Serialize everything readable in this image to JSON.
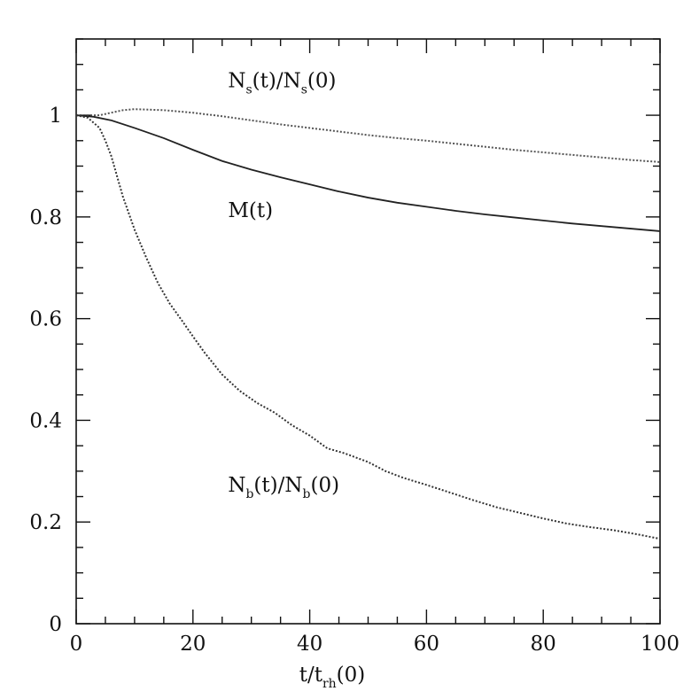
{
  "chart_data": {
    "type": "line",
    "title": "",
    "xlabel": {
      "base": "t/t",
      "sub": "rh",
      "suffix": "(0)"
    },
    "ylabel": "",
    "xlim": [
      0,
      100
    ],
    "ylim": [
      0,
      1.15
    ],
    "x_ticks": [
      "0",
      "20",
      "40",
      "60",
      "80",
      "100"
    ],
    "y_ticks": [
      "0",
      "0.2",
      "0.4",
      "0.6",
      "0.8",
      "1"
    ],
    "series": [
      {
        "name": "N_s(t)/N_s(0)",
        "label_parts": [
          {
            "t": "N",
            "sub": false
          },
          {
            "t": "s",
            "sub": true
          },
          {
            "t": "(t)/N",
            "sub": false
          },
          {
            "t": "s",
            "sub": true
          },
          {
            "t": "(0)",
            "sub": false
          }
        ],
        "label_at": [
          26,
          1.055
        ],
        "style": "dotted",
        "color": "#555555",
        "x": [
          0,
          2,
          4,
          6,
          8,
          10,
          15,
          20,
          25,
          30,
          35,
          40,
          45,
          50,
          55,
          60,
          65,
          70,
          75,
          80,
          85,
          90,
          95,
          100
        ],
        "y": [
          1.0,
          1.0,
          1.0,
          1.005,
          1.01,
          1.012,
          1.01,
          1.005,
          0.998,
          0.99,
          0.982,
          0.975,
          0.968,
          0.961,
          0.955,
          0.95,
          0.944,
          0.938,
          0.932,
          0.927,
          0.922,
          0.917,
          0.912,
          0.908
        ]
      },
      {
        "name": "M(t)",
        "label_parts": [
          {
            "t": "M(t)",
            "sub": false
          }
        ],
        "label_at": [
          26,
          0.8
        ],
        "style": "solid",
        "color": "#222222",
        "x": [
          0,
          3,
          6,
          10,
          15,
          20,
          25,
          30,
          35,
          40,
          45,
          50,
          55,
          60,
          65,
          70,
          75,
          80,
          85,
          90,
          95,
          100
        ],
        "y": [
          1.0,
          0.997,
          0.99,
          0.975,
          0.955,
          0.932,
          0.91,
          0.893,
          0.878,
          0.864,
          0.85,
          0.838,
          0.828,
          0.82,
          0.812,
          0.805,
          0.799,
          0.793,
          0.787,
          0.782,
          0.777,
          0.772
        ]
      },
      {
        "name": "N_b(t)/N_b(0)",
        "label_parts": [
          {
            "t": "N",
            "sub": false
          },
          {
            "t": "b",
            "sub": true
          },
          {
            "t": "(t)/N",
            "sub": false
          },
          {
            "t": "b",
            "sub": true
          },
          {
            "t": "(0)",
            "sub": false
          }
        ],
        "label_at": [
          26,
          0.26
        ],
        "style": "dotted",
        "color": "#333333",
        "x": [
          0,
          2,
          4,
          5,
          6,
          7,
          8,
          10,
          12,
          14,
          16,
          18,
          20,
          22,
          25,
          28,
          31,
          34,
          37,
          40,
          43,
          46,
          50,
          53,
          56,
          60,
          64,
          68,
          72,
          76,
          80,
          84,
          88,
          92,
          96,
          100
        ],
        "y": [
          1.0,
          0.995,
          0.975,
          0.95,
          0.92,
          0.88,
          0.84,
          0.775,
          0.72,
          0.67,
          0.63,
          0.598,
          0.565,
          0.533,
          0.49,
          0.458,
          0.434,
          0.415,
          0.39,
          0.37,
          0.345,
          0.335,
          0.318,
          0.3,
          0.287,
          0.273,
          0.258,
          0.243,
          0.229,
          0.218,
          0.207,
          0.197,
          0.19,
          0.184,
          0.176,
          0.167
        ]
      }
    ],
    "grid": false,
    "legend": "none"
  }
}
